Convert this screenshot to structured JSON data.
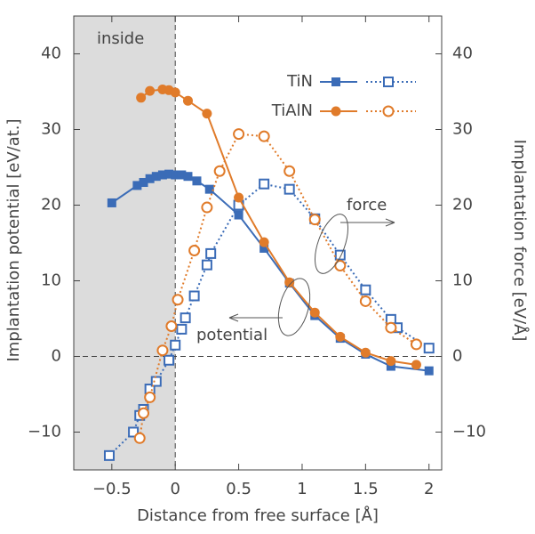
{
  "chart_data": {
    "type": "line",
    "x_label": "Distance from free surface [Å]",
    "y_label": "Implantation potential [eV/at.]",
    "y2_label": "Implantation force [eV/Å]",
    "region_label": "inside",
    "annotations": [
      "force",
      "potential"
    ],
    "xlim": [
      -0.8,
      2.1
    ],
    "xticks": [
      {
        "value": -0.5,
        "label": "−0.5"
      },
      0,
      0.5,
      1,
      1.5,
      2
    ],
    "ylim": [
      -15,
      45
    ],
    "yticks": [
      {
        "value": -10,
        "label": "−10"
      },
      0,
      10,
      20,
      30,
      40
    ],
    "y2lim": [
      -15,
      45
    ],
    "y2ticks": [
      {
        "value": -10,
        "label": "−10"
      },
      0,
      10,
      20,
      30,
      40
    ],
    "series": [
      {
        "name": "TiN",
        "color": "#3b6cb7",
        "x": [
          -0.5,
          -0.3,
          -0.25,
          -0.2,
          -0.15,
          -0.1,
          -0.05,
          0,
          0.05,
          0.1,
          0.17,
          0.27,
          0.5,
          0.7,
          0.9,
          1.1,
          1.3,
          1.5,
          1.7,
          2.0
        ],
        "values": [
          20.3,
          22.6,
          23.0,
          23.5,
          23.8,
          24.0,
          24.1,
          24.0,
          24.0,
          23.8,
          23.2,
          22.1,
          18.7,
          14.3,
          9.7,
          5.4,
          2.4,
          0.3,
          -1.3,
          -1.9
        ],
        "force": {
          "axis": "y2",
          "x": [
            -0.52,
            -0.33,
            -0.28,
            -0.25,
            -0.2,
            -0.15,
            -0.05,
            0,
            0.05,
            0.08,
            0.15,
            0.25,
            0.28,
            0.5,
            0.7,
            0.9,
            1.1,
            1.3,
            1.5,
            1.7,
            1.75,
            2.0
          ],
          "values": [
            -13.1,
            -10.0,
            -7.8,
            -7.0,
            -4.3,
            -3.3,
            -0.5,
            1.5,
            3.6,
            5.1,
            8.0,
            12.1,
            13.6,
            20.0,
            22.8,
            22.1,
            18.2,
            13.4,
            8.8,
            4.9,
            3.8,
            1.1
          ]
        }
      },
      {
        "name": "TiAlN",
        "color": "#e07b2a",
        "x": [
          -0.27,
          -0.2,
          -0.1,
          -0.05,
          0,
          0.1,
          0.25,
          0.5,
          0.7,
          0.9,
          1.1,
          1.3,
          1.5,
          1.7,
          1.9
        ],
        "values": [
          34.2,
          35.1,
          35.3,
          35.2,
          34.9,
          33.8,
          32.1,
          21.0,
          15.1,
          9.8,
          5.8,
          2.6,
          0.5,
          -0.6,
          -1.1
        ],
        "force": {
          "axis": "y2",
          "x": [
            -0.28,
            -0.25,
            -0.2,
            -0.1,
            -0.03,
            0.02,
            0.15,
            0.25,
            0.35,
            0.5,
            0.7,
            0.9,
            1.1,
            1.3,
            1.5,
            1.7,
            1.9
          ],
          "values": [
            -10.8,
            -7.5,
            -5.4,
            0.8,
            4.0,
            7.5,
            14.0,
            19.7,
            24.5,
            29.4,
            29.1,
            24.5,
            18.1,
            12.0,
            7.3,
            3.8,
            1.6
          ]
        }
      }
    ]
  }
}
